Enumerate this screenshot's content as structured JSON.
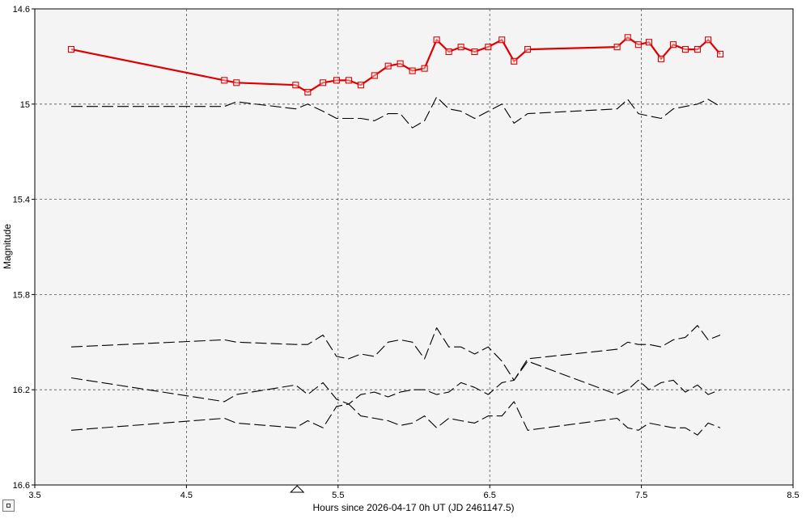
{
  "chart_data": {
    "type": "line",
    "xlabel": "Hours since 2026-04-17 0h UT (JD 2461147.5)",
    "ylabel": "Magnitude",
    "xlim": [
      3.5,
      8.5
    ],
    "ylim": [
      14.6,
      16.6
    ],
    "y_inverted": true,
    "x_ticks": [
      "3.5",
      "4.5",
      "5.5",
      "6.5",
      "7.5",
      "8.5"
    ],
    "y_ticks": [
      "14.6",
      "15",
      "15.4",
      "15.8",
      "16.2",
      "16.6"
    ],
    "grid": true,
    "marker_x": 5.23,
    "series": [
      {
        "style": "target",
        "color": "#dd0000",
        "points": [
          [
            3.74,
            14.77
          ],
          [
            4.75,
            14.9
          ],
          [
            4.83,
            14.91
          ],
          [
            5.22,
            14.92
          ],
          [
            5.3,
            14.95
          ],
          [
            5.4,
            14.91
          ],
          [
            5.49,
            14.9
          ],
          [
            5.57,
            14.9
          ],
          [
            5.65,
            14.92
          ],
          [
            5.74,
            14.88
          ],
          [
            5.83,
            14.84
          ],
          [
            5.91,
            14.83
          ],
          [
            5.99,
            14.86
          ],
          [
            6.07,
            14.85
          ],
          [
            6.15,
            14.73
          ],
          [
            6.23,
            14.78
          ],
          [
            6.31,
            14.76
          ],
          [
            6.4,
            14.78
          ],
          [
            6.49,
            14.76
          ],
          [
            6.58,
            14.73
          ],
          [
            6.66,
            14.82
          ],
          [
            6.75,
            14.77
          ],
          [
            7.34,
            14.76
          ],
          [
            7.41,
            14.72
          ],
          [
            7.48,
            14.75
          ],
          [
            7.55,
            14.74
          ],
          [
            7.63,
            14.81
          ],
          [
            7.71,
            14.75
          ],
          [
            7.79,
            14.77
          ],
          [
            7.87,
            14.77
          ],
          [
            7.94,
            14.73
          ],
          [
            8.02,
            14.79
          ]
        ]
      },
      {
        "style": "comp",
        "color": "#000000",
        "points": [
          [
            3.74,
            15.01
          ],
          [
            4.75,
            15.01
          ],
          [
            4.83,
            14.99
          ],
          [
            5.22,
            15.02
          ],
          [
            5.3,
            15.0
          ],
          [
            5.4,
            15.03
          ],
          [
            5.49,
            15.06
          ],
          [
            5.57,
            15.06
          ],
          [
            5.65,
            15.06
          ],
          [
            5.74,
            15.07
          ],
          [
            5.83,
            15.04
          ],
          [
            5.91,
            15.04
          ],
          [
            5.99,
            15.1
          ],
          [
            6.07,
            15.07
          ],
          [
            6.15,
            14.97
          ],
          [
            6.23,
            15.02
          ],
          [
            6.31,
            15.03
          ],
          [
            6.4,
            15.06
          ],
          [
            6.49,
            15.03
          ],
          [
            6.58,
            15.0
          ],
          [
            6.66,
            15.08
          ],
          [
            6.75,
            15.04
          ],
          [
            7.34,
            15.02
          ],
          [
            7.41,
            14.98
          ],
          [
            7.48,
            15.04
          ],
          [
            7.55,
            15.05
          ],
          [
            7.63,
            15.06
          ],
          [
            7.71,
            15.02
          ],
          [
            7.79,
            15.01
          ],
          [
            7.87,
            15.0
          ],
          [
            7.94,
            14.98
          ],
          [
            8.02,
            15.01
          ]
        ]
      },
      {
        "style": "comp",
        "color": "#000000",
        "points": [
          [
            3.74,
            16.02
          ],
          [
            4.75,
            15.99
          ],
          [
            4.83,
            16.0
          ],
          [
            5.22,
            16.01
          ],
          [
            5.3,
            16.01
          ],
          [
            5.4,
            15.97
          ],
          [
            5.49,
            16.06
          ],
          [
            5.57,
            16.07
          ],
          [
            5.65,
            16.05
          ],
          [
            5.74,
            16.06
          ],
          [
            5.83,
            16.0
          ],
          [
            5.91,
            15.99
          ],
          [
            5.99,
            16.0
          ],
          [
            6.07,
            16.07
          ],
          [
            6.15,
            15.94
          ],
          [
            6.23,
            16.02
          ],
          [
            6.31,
            16.02
          ],
          [
            6.4,
            16.05
          ],
          [
            6.49,
            16.02
          ],
          [
            6.58,
            16.08
          ],
          [
            6.66,
            16.16
          ],
          [
            6.75,
            16.07
          ],
          [
            7.34,
            16.03
          ],
          [
            7.41,
            16.0
          ],
          [
            7.48,
            16.01
          ],
          [
            7.55,
            16.01
          ],
          [
            7.63,
            16.02
          ],
          [
            7.71,
            15.99
          ],
          [
            7.79,
            15.98
          ],
          [
            7.87,
            15.93
          ],
          [
            7.94,
            15.99
          ],
          [
            8.02,
            15.97
          ]
        ]
      },
      {
        "style": "comp",
        "color": "#000000",
        "points": [
          [
            3.74,
            16.15
          ],
          [
            4.75,
            16.25
          ],
          [
            4.83,
            16.22
          ],
          [
            5.22,
            16.18
          ],
          [
            5.3,
            16.22
          ],
          [
            5.4,
            16.17
          ],
          [
            5.49,
            16.24
          ],
          [
            5.57,
            16.26
          ],
          [
            5.65,
            16.22
          ],
          [
            5.74,
            16.21
          ],
          [
            5.83,
            16.23
          ],
          [
            5.91,
            16.21
          ],
          [
            5.99,
            16.2
          ],
          [
            6.07,
            16.2
          ],
          [
            6.15,
            16.22
          ],
          [
            6.23,
            16.21
          ],
          [
            6.31,
            16.17
          ],
          [
            6.4,
            16.19
          ],
          [
            6.49,
            16.22
          ],
          [
            6.58,
            16.17
          ],
          [
            6.66,
            16.16
          ],
          [
            6.75,
            16.08
          ],
          [
            7.34,
            16.22
          ],
          [
            7.41,
            16.2
          ],
          [
            7.48,
            16.16
          ],
          [
            7.55,
            16.2
          ],
          [
            7.63,
            16.17
          ],
          [
            7.71,
            16.16
          ],
          [
            7.79,
            16.21
          ],
          [
            7.87,
            16.18
          ],
          [
            7.94,
            16.22
          ],
          [
            8.02,
            16.2
          ]
        ]
      },
      {
        "style": "comp",
        "color": "#000000",
        "points": [
          [
            3.74,
            16.37
          ],
          [
            4.75,
            16.32
          ],
          [
            4.83,
            16.34
          ],
          [
            5.22,
            16.36
          ],
          [
            5.3,
            16.33
          ],
          [
            5.4,
            16.36
          ],
          [
            5.49,
            16.27
          ],
          [
            5.57,
            16.26
          ],
          [
            5.65,
            16.31
          ],
          [
            5.74,
            16.32
          ],
          [
            5.83,
            16.33
          ],
          [
            5.91,
            16.35
          ],
          [
            5.99,
            16.34
          ],
          [
            6.07,
            16.31
          ],
          [
            6.15,
            16.36
          ],
          [
            6.23,
            16.32
          ],
          [
            6.31,
            16.33
          ],
          [
            6.4,
            16.34
          ],
          [
            6.49,
            16.31
          ],
          [
            6.58,
            16.31
          ],
          [
            6.66,
            16.25
          ],
          [
            6.75,
            16.37
          ],
          [
            7.34,
            16.32
          ],
          [
            7.41,
            16.36
          ],
          [
            7.48,
            16.37
          ],
          [
            7.55,
            16.34
          ],
          [
            7.63,
            16.35
          ],
          [
            7.71,
            16.36
          ],
          [
            7.79,
            16.36
          ],
          [
            7.87,
            16.39
          ],
          [
            7.94,
            16.34
          ],
          [
            8.02,
            16.36
          ]
        ]
      }
    ]
  }
}
